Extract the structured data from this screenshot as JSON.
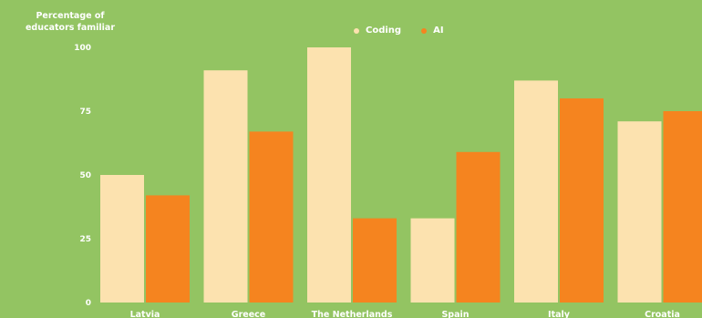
{
  "colors": {
    "background": "#93c462",
    "coding": "#fce2af",
    "ai": "#f5841f",
    "text": "#ffffff"
  },
  "chart_data": {
    "type": "bar",
    "title": "",
    "xlabel": "",
    "ylabel": "Percentage of educators familiar",
    "ylim": [
      0,
      100
    ],
    "yticks": [
      0,
      25,
      50,
      75,
      100
    ],
    "grid": false,
    "legend_position": "top-center",
    "categories": [
      "Latvia",
      "Greece",
      "The Netherlands",
      "Spain",
      "Italy",
      "Croatia"
    ],
    "series": [
      {
        "name": "Coding",
        "color": "#fce2af",
        "values": [
          50,
          91,
          100,
          33,
          87,
          71
        ]
      },
      {
        "name": "AI",
        "color": "#f5841f",
        "values": [
          42,
          67,
          33,
          59,
          80,
          75
        ]
      }
    ]
  }
}
